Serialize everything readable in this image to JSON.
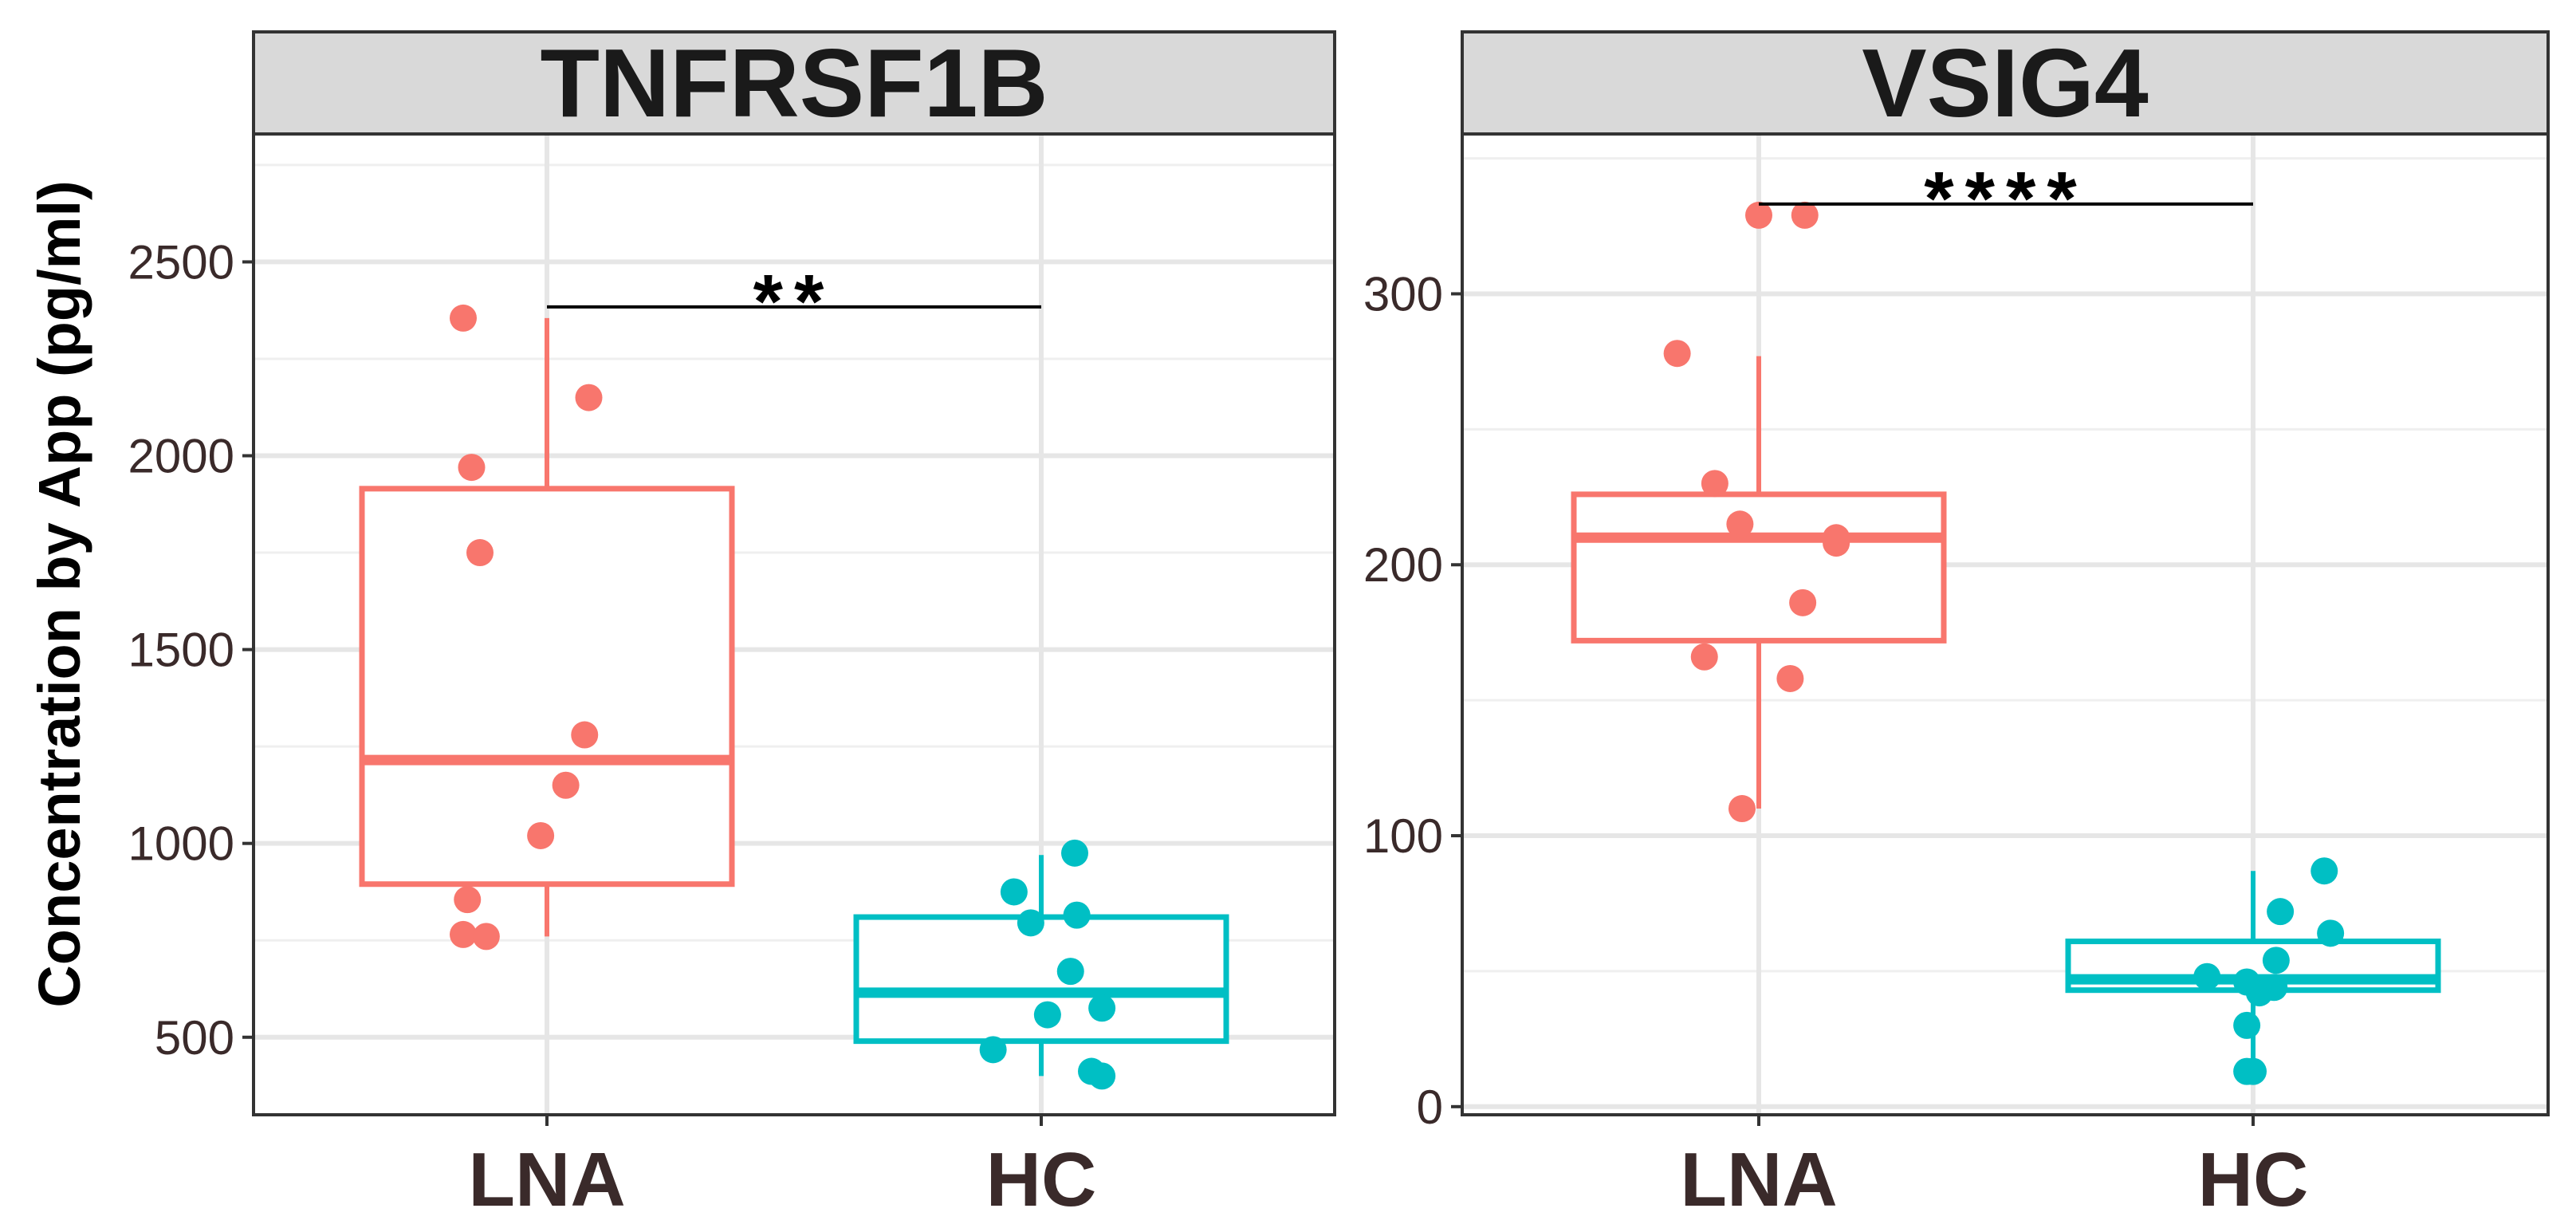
{
  "ylabel": "Concentration by App (pg/ml)",
  "colors": {
    "LNA": "#F8766D",
    "HC": "#00BFC4"
  },
  "chart_data": [
    {
      "type": "box",
      "title": "TNFRSF1B",
      "categories": [
        "LNA",
        "HC"
      ],
      "ylim": [
        300,
        2830
      ],
      "yticks": [
        500,
        1000,
        1500,
        2000,
        2500
      ],
      "significance": "**",
      "boxes": {
        "LNA": {
          "lower_whisker": 760,
          "q1": 895,
          "median": 1215,
          "q3": 1915,
          "upper_whisker": 2355
        },
        "HC": {
          "lower_whisker": 400,
          "q1": 490,
          "median": 615,
          "q3": 810,
          "upper_whisker": 970
        }
      },
      "points": {
        "LNA": [
          {
            "j": -0.4,
            "y": 2355
          },
          {
            "j": -0.36,
            "y": 1970
          },
          {
            "j": -0.32,
            "y": 1750
          },
          {
            "j": 0.2,
            "y": 2150
          },
          {
            "j": 0.18,
            "y": 1280
          },
          {
            "j": 0.09,
            "y": 1150
          },
          {
            "j": -0.03,
            "y": 1020
          },
          {
            "j": -0.38,
            "y": 855
          },
          {
            "j": -0.4,
            "y": 765
          },
          {
            "j": -0.29,
            "y": 760
          }
        ],
        "HC": [
          {
            "j": 0.16,
            "y": 975
          },
          {
            "j": -0.13,
            "y": 875
          },
          {
            "j": -0.05,
            "y": 795
          },
          {
            "j": 0.17,
            "y": 815
          },
          {
            "j": 0.14,
            "y": 670
          },
          {
            "j": 0.29,
            "y": 575
          },
          {
            "j": 0.03,
            "y": 558
          },
          {
            "j": -0.23,
            "y": 468
          },
          {
            "j": 0.24,
            "y": 412
          },
          {
            "j": 0.29,
            "y": 400
          }
        ]
      }
    },
    {
      "type": "box",
      "title": "VSIG4",
      "categories": [
        "LNA",
        "HC"
      ],
      "ylim": [
        -3,
        359
      ],
      "yticks": [
        0,
        100,
        200,
        300
      ],
      "significance": "****",
      "boxes": {
        "LNA": {
          "lower_whisker": 110,
          "q1": 172,
          "median": 210,
          "q3": 226,
          "upper_whisker": 277
        },
        "HC": {
          "lower_whisker": 13,
          "q1": 43,
          "median": 47,
          "q3": 61,
          "upper_whisker": 87
        }
      },
      "points": {
        "LNA": [
          {
            "j": 0.0,
            "y": 329
          },
          {
            "j": 0.22,
            "y": 329
          },
          {
            "j": -0.39,
            "y": 278
          },
          {
            "j": -0.21,
            "y": 230
          },
          {
            "j": -0.09,
            "y": 215
          },
          {
            "j": 0.37,
            "y": 210
          },
          {
            "j": 0.37,
            "y": 208
          },
          {
            "j": 0.21,
            "y": 186
          },
          {
            "j": -0.26,
            "y": 166
          },
          {
            "j": 0.15,
            "y": 158
          },
          {
            "j": -0.08,
            "y": 110
          }
        ],
        "HC": [
          {
            "j": -0.22,
            "y": 48
          },
          {
            "j": -0.03,
            "y": 46
          },
          {
            "j": 0.03,
            "y": 42
          },
          {
            "j": 0.1,
            "y": 44
          },
          {
            "j": 0.11,
            "y": 54
          },
          {
            "j": 0.13,
            "y": 72
          },
          {
            "j": 0.34,
            "y": 87
          },
          {
            "j": 0.37,
            "y": 64
          },
          {
            "j": -0.03,
            "y": 30
          },
          {
            "j": -0.03,
            "y": 13
          },
          {
            "j": 0.0,
            "y": 13
          }
        ]
      }
    }
  ]
}
